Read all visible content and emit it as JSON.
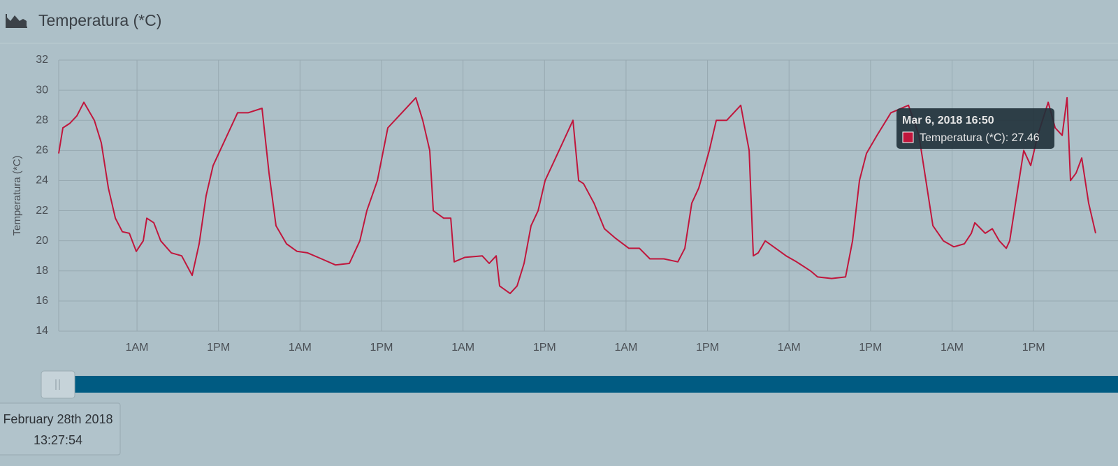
{
  "header": {
    "title": "Temperatura (*C)"
  },
  "chart_data": {
    "type": "line",
    "ylabel": "Temperatura (*C)",
    "grid": true,
    "x": [
      0.47,
      1.09,
      2.12,
      3.14,
      4.17,
      5.72,
      6.75,
      7.78,
      8.81,
      9.84,
      10.87,
      11.89,
      12.92,
      13.44,
      14.47,
      15.49,
      17.04,
      18.58,
      20.12,
      21.15,
      22.18,
      23.21,
      24.75,
      26.81,
      28.35,
      30.41,
      31.44,
      32.47,
      34.01,
      35.56,
      37.1,
      39.16,
      41.21,
      43.27,
      44.81,
      45.84,
      47.39,
      48.93,
      50.99,
      53.05,
      54.07,
      55.1,
      55.62,
      57.16,
      58.19,
      58.7,
      60.25,
      62.82,
      63.85,
      64.88,
      65.39,
      66.93,
      67.96,
      68.99,
      70.02,
      71.05,
      72.08,
      73.11,
      74.65,
      76.19,
      77.02,
      77.74,
      79.28,
      80.82,
      82.37,
      84.42,
      85.97,
      87.51,
      89.57,
      91.63,
      92.66,
      93.68,
      94.71,
      96.26,
      97.29,
      98.83,
      100.89,
      102.12,
      102.74,
      103.46,
      104.49,
      106.03,
      107.57,
      109.11,
      111.17,
      112.2,
      114.26,
      116.32,
      117.35,
      118.37,
      119.4,
      120.95,
      123.0,
      125.58,
      127.12,
      128.15,
      129.18,
      130.72,
      132.26,
      133.81,
      134.84,
      135.35,
      136.89,
      137.92,
      138.95,
      139.98,
      140.49,
      141.52,
      142.55,
      143.58,
      144.61,
      146.15,
      147.18,
      148.21,
      148.93,
      149.44,
      150.26,
      151.09,
      152.11,
      153.14
    ],
    "series": [
      {
        "name": "Temperatura (*C)",
        "color": "#c0163c",
        "values": [
          25.8,
          27.5,
          27.8,
          28.3,
          29.2,
          28.0,
          26.5,
          23.5,
          21.5,
          20.6,
          20.5,
          19.3,
          20.0,
          21.5,
          21.2,
          20.0,
          19.2,
          19.0,
          17.7,
          19.8,
          23.0,
          25.0,
          26.5,
          28.5,
          28.5,
          28.8,
          24.5,
          21.0,
          19.8,
          19.3,
          19.2,
          18.8,
          18.4,
          18.5,
          20.0,
          22.0,
          24.0,
          27.5,
          28.5,
          29.5,
          28.0,
          26.0,
          22.0,
          21.5,
          21.5,
          18.6,
          18.9,
          19.0,
          18.5,
          19.0,
          17.0,
          16.5,
          17.0,
          18.5,
          21.0,
          22.0,
          24.0,
          25.0,
          26.5,
          28.0,
          24.0,
          23.8,
          22.5,
          20.8,
          20.2,
          19.5,
          19.5,
          18.8,
          18.8,
          18.6,
          19.5,
          22.5,
          23.5,
          26.0,
          28.0,
          28.0,
          29.0,
          26.0,
          19.0,
          19.2,
          20.0,
          19.5,
          19.0,
          18.6,
          18.0,
          17.6,
          17.5,
          17.6,
          20.0,
          24.0,
          25.8,
          27.0,
          28.5,
          29.0,
          27.0,
          24.0,
          21.0,
          20.0,
          19.6,
          19.8,
          20.5,
          21.2,
          20.5,
          20.8,
          20.0,
          19.5,
          20.0,
          23.0,
          26.0,
          25.0,
          27.0,
          29.2,
          27.5,
          27.0,
          29.5,
          24.0,
          24.5,
          25.5,
          22.5,
          20.5
        ]
      }
    ],
    "xlim": [
      0.47,
      153.14
    ],
    "ylim": [
      14,
      32
    ],
    "xticks": [
      {
        "value": 12,
        "label": "1AM"
      },
      {
        "value": 24,
        "label": "1PM"
      },
      {
        "value": 36,
        "label": "1AM"
      },
      {
        "value": 48,
        "label": "1PM"
      },
      {
        "value": 60,
        "label": "1AM"
      },
      {
        "value": 72,
        "label": "1PM"
      },
      {
        "value": 84,
        "label": "1AM"
      },
      {
        "value": 96,
        "label": "1PM"
      },
      {
        "value": 108,
        "label": "1AM"
      },
      {
        "value": 120,
        "label": "1PM"
      },
      {
        "value": 132,
        "label": "1AM"
      },
      {
        "value": 144,
        "label": "1PM"
      }
    ],
    "yticks": [
      14,
      16,
      18,
      20,
      22,
      24,
      26,
      28,
      30,
      32
    ]
  },
  "tooltip": {
    "date": "Mar 6, 2018 16:50",
    "label": "Temperatura (*C): 27.46"
  },
  "slider": {
    "date": "February 28th 2018",
    "time": "13:27:54"
  }
}
